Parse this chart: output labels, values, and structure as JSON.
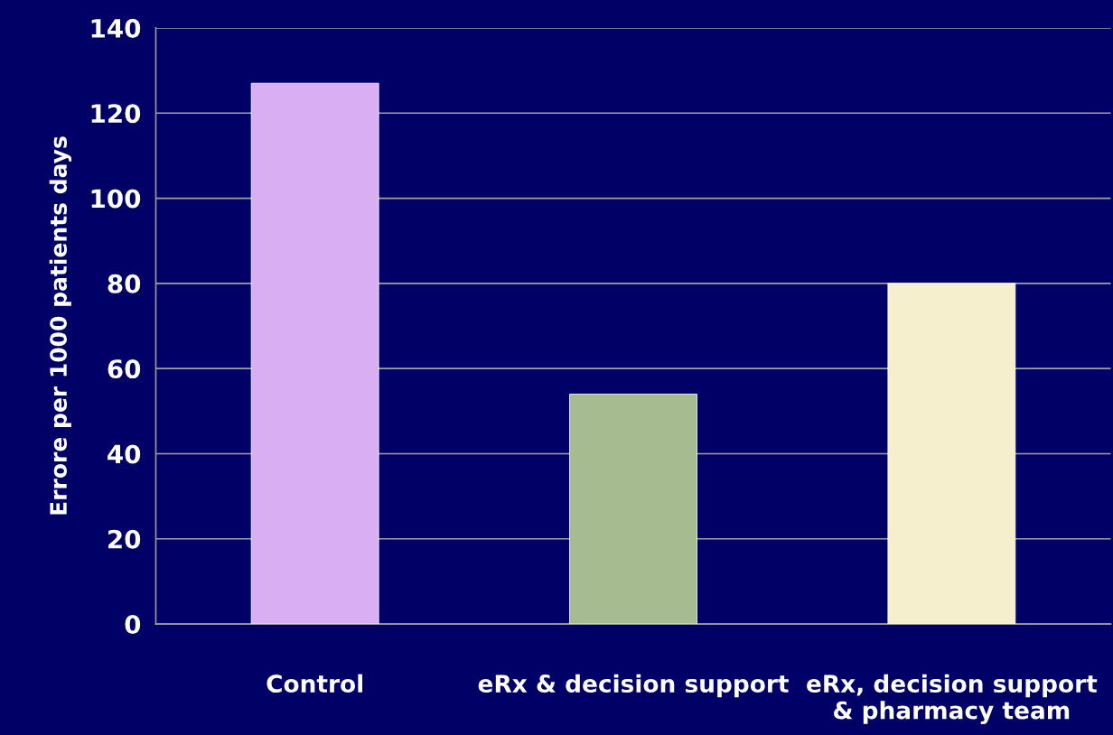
{
  "chart_data": {
    "type": "bar",
    "ylabel": "Errore per 1000 patients days",
    "categories": [
      "Control",
      "eRx & decision support",
      "eRx, decision support\n& pharmacy team"
    ],
    "values": [
      127,
      54,
      80
    ],
    "colors": [
      "#d9aef2",
      "#a6bc90",
      "#f6efcd"
    ],
    "ylim": [
      0,
      140
    ],
    "yticks": [
      0,
      20,
      40,
      60,
      80,
      100,
      120,
      140
    ],
    "grid": "y",
    "legend": false
  }
}
